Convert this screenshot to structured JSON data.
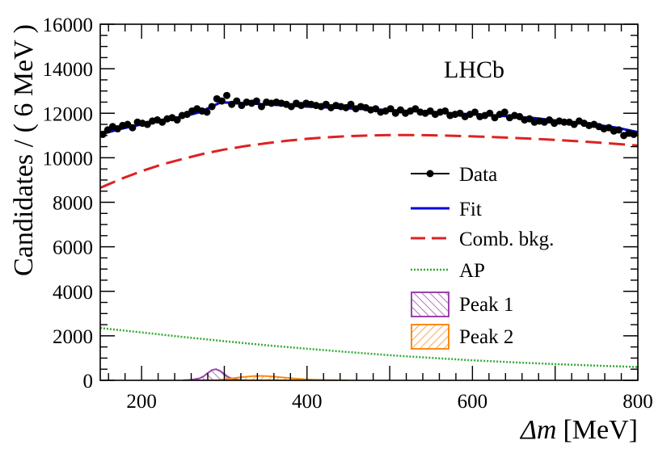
{
  "chart_data": {
    "type": "line",
    "title": "",
    "xlabel_symbol": "Δm",
    "xlabel_unit": "[MeV]",
    "ylabel": "Candidates / ( 6 MeV )",
    "xlim": [
      150,
      800
    ],
    "ylim": [
      0,
      16000
    ],
    "xticks": [
      200,
      400,
      600,
      800
    ],
    "yticks": [
      0,
      2000,
      4000,
      6000,
      8000,
      10000,
      12000,
      14000,
      16000
    ],
    "annotation": "LHCb",
    "legend_position": "center-right",
    "legend": [
      {
        "key": "data",
        "label": "Data"
      },
      {
        "key": "fit",
        "label": "Fit"
      },
      {
        "key": "comb",
        "label": "Comb. bkg."
      },
      {
        "key": "ap",
        "label": "AP"
      },
      {
        "key": "peak1",
        "label": "Peak 1"
      },
      {
        "key": "peak2",
        "label": "Peak 2"
      }
    ],
    "colors": {
      "data": "#000000",
      "fit": "#0000dd",
      "comb": "#dd2222",
      "ap": "#33aa33",
      "peak1": "#9944aa",
      "peak2": "#ff8811"
    },
    "series": [
      {
        "name": "Data",
        "x": [
          153,
          159,
          165,
          171,
          177,
          183,
          189,
          195,
          201,
          207,
          213,
          219,
          225,
          231,
          237,
          243,
          249,
          255,
          261,
          267,
          273,
          279,
          285,
          291,
          297,
          303,
          309,
          315,
          321,
          327,
          333,
          339,
          345,
          351,
          357,
          363,
          369,
          375,
          381,
          387,
          393,
          399,
          405,
          411,
          417,
          423,
          429,
          435,
          441,
          447,
          453,
          459,
          465,
          471,
          477,
          483,
          489,
          495,
          501,
          507,
          513,
          519,
          525,
          531,
          537,
          543,
          549,
          555,
          561,
          567,
          573,
          579,
          585,
          591,
          597,
          603,
          609,
          615,
          621,
          627,
          633,
          639,
          645,
          651,
          657,
          663,
          669,
          675,
          681,
          687,
          693,
          699,
          705,
          711,
          717,
          723,
          729,
          735,
          741,
          747,
          753,
          759,
          765,
          771,
          777,
          783,
          789,
          795
        ],
        "y": [
          11050,
          11250,
          11400,
          11300,
          11450,
          11500,
          11350,
          11600,
          11550,
          11500,
          11650,
          11700,
          11600,
          11750,
          11800,
          11700,
          11900,
          11950,
          12100,
          12200,
          12100,
          12050,
          12300,
          12650,
          12550,
          12800,
          12400,
          12550,
          12350,
          12500,
          12450,
          12550,
          12300,
          12500,
          12450,
          12500,
          12450,
          12400,
          12300,
          12450,
          12350,
          12450,
          12400,
          12350,
          12300,
          12400,
          12250,
          12350,
          12300,
          12250,
          12400,
          12200,
          12300,
          12250,
          12150,
          12200,
          12050,
          12100,
          12200,
          12000,
          12150,
          12000,
          12100,
          12200,
          12050,
          12000,
          12100,
          11950,
          12050,
          12100,
          11900,
          11950,
          12000,
          11850,
          11950,
          12050,
          11850,
          11900,
          12000,
          11800,
          11950,
          12050,
          11800,
          11900,
          11850,
          11700,
          11750,
          11600,
          11650,
          11600,
          11700,
          11550,
          11650,
          11600,
          11600,
          11500,
          11650,
          11550,
          11450,
          11500,
          11400,
          11300,
          11350,
          11200,
          11250,
          11000,
          11100,
          11050
        ]
      },
      {
        "name": "Fit",
        "x": [
          150,
          175,
          200,
          225,
          250,
          270,
          285,
          295,
          310,
          330,
          350,
          375,
          400,
          425,
          450,
          475,
          500,
          525,
          550,
          575,
          600,
          625,
          650,
          675,
          700,
          725,
          750,
          775,
          800
        ],
        "y": [
          11050,
          11300,
          11500,
          11700,
          11850,
          12050,
          12300,
          12480,
          12480,
          12440,
          12400,
          12350,
          12300,
          12260,
          12220,
          12180,
          12140,
          12100,
          12060,
          12000,
          11950,
          11900,
          11850,
          11780,
          11680,
          11580,
          11480,
          11350,
          11150
        ]
      },
      {
        "name": "Comb. bkg.",
        "x": [
          150,
          175,
          200,
          225,
          250,
          275,
          300,
          325,
          350,
          375,
          400,
          425,
          450,
          475,
          500,
          525,
          550,
          575,
          600,
          625,
          650,
          675,
          700,
          725,
          750,
          775,
          800
        ],
        "y": [
          8650,
          9050,
          9400,
          9700,
          9950,
          10180,
          10370,
          10520,
          10650,
          10760,
          10850,
          10920,
          10970,
          11000,
          11020,
          11020,
          11010,
          10990,
          10960,
          10930,
          10890,
          10850,
          10800,
          10750,
          10690,
          10620,
          10550
        ]
      },
      {
        "name": "AP",
        "x": [
          150,
          200,
          250,
          300,
          350,
          400,
          450,
          500,
          550,
          600,
          650,
          700,
          750,
          800
        ],
        "y": [
          2350,
          2150,
          1950,
          1760,
          1580,
          1420,
          1270,
          1130,
          1010,
          900,
          810,
          730,
          660,
          600
        ]
      },
      {
        "name": "Peak 1",
        "x": [
          250,
          260,
          270,
          275,
          280,
          285,
          290,
          295,
          300,
          305,
          310,
          320,
          330
        ],
        "y": [
          0,
          20,
          90,
          180,
          330,
          460,
          500,
          420,
          280,
          140,
          60,
          10,
          0
        ]
      },
      {
        "name": "Peak 2",
        "x": [
          290,
          305,
          320,
          335,
          345,
          355,
          370,
          385,
          400,
          420,
          450
        ],
        "y": [
          0,
          60,
          140,
          190,
          200,
          180,
          130,
          80,
          40,
          15,
          0
        ]
      }
    ]
  }
}
